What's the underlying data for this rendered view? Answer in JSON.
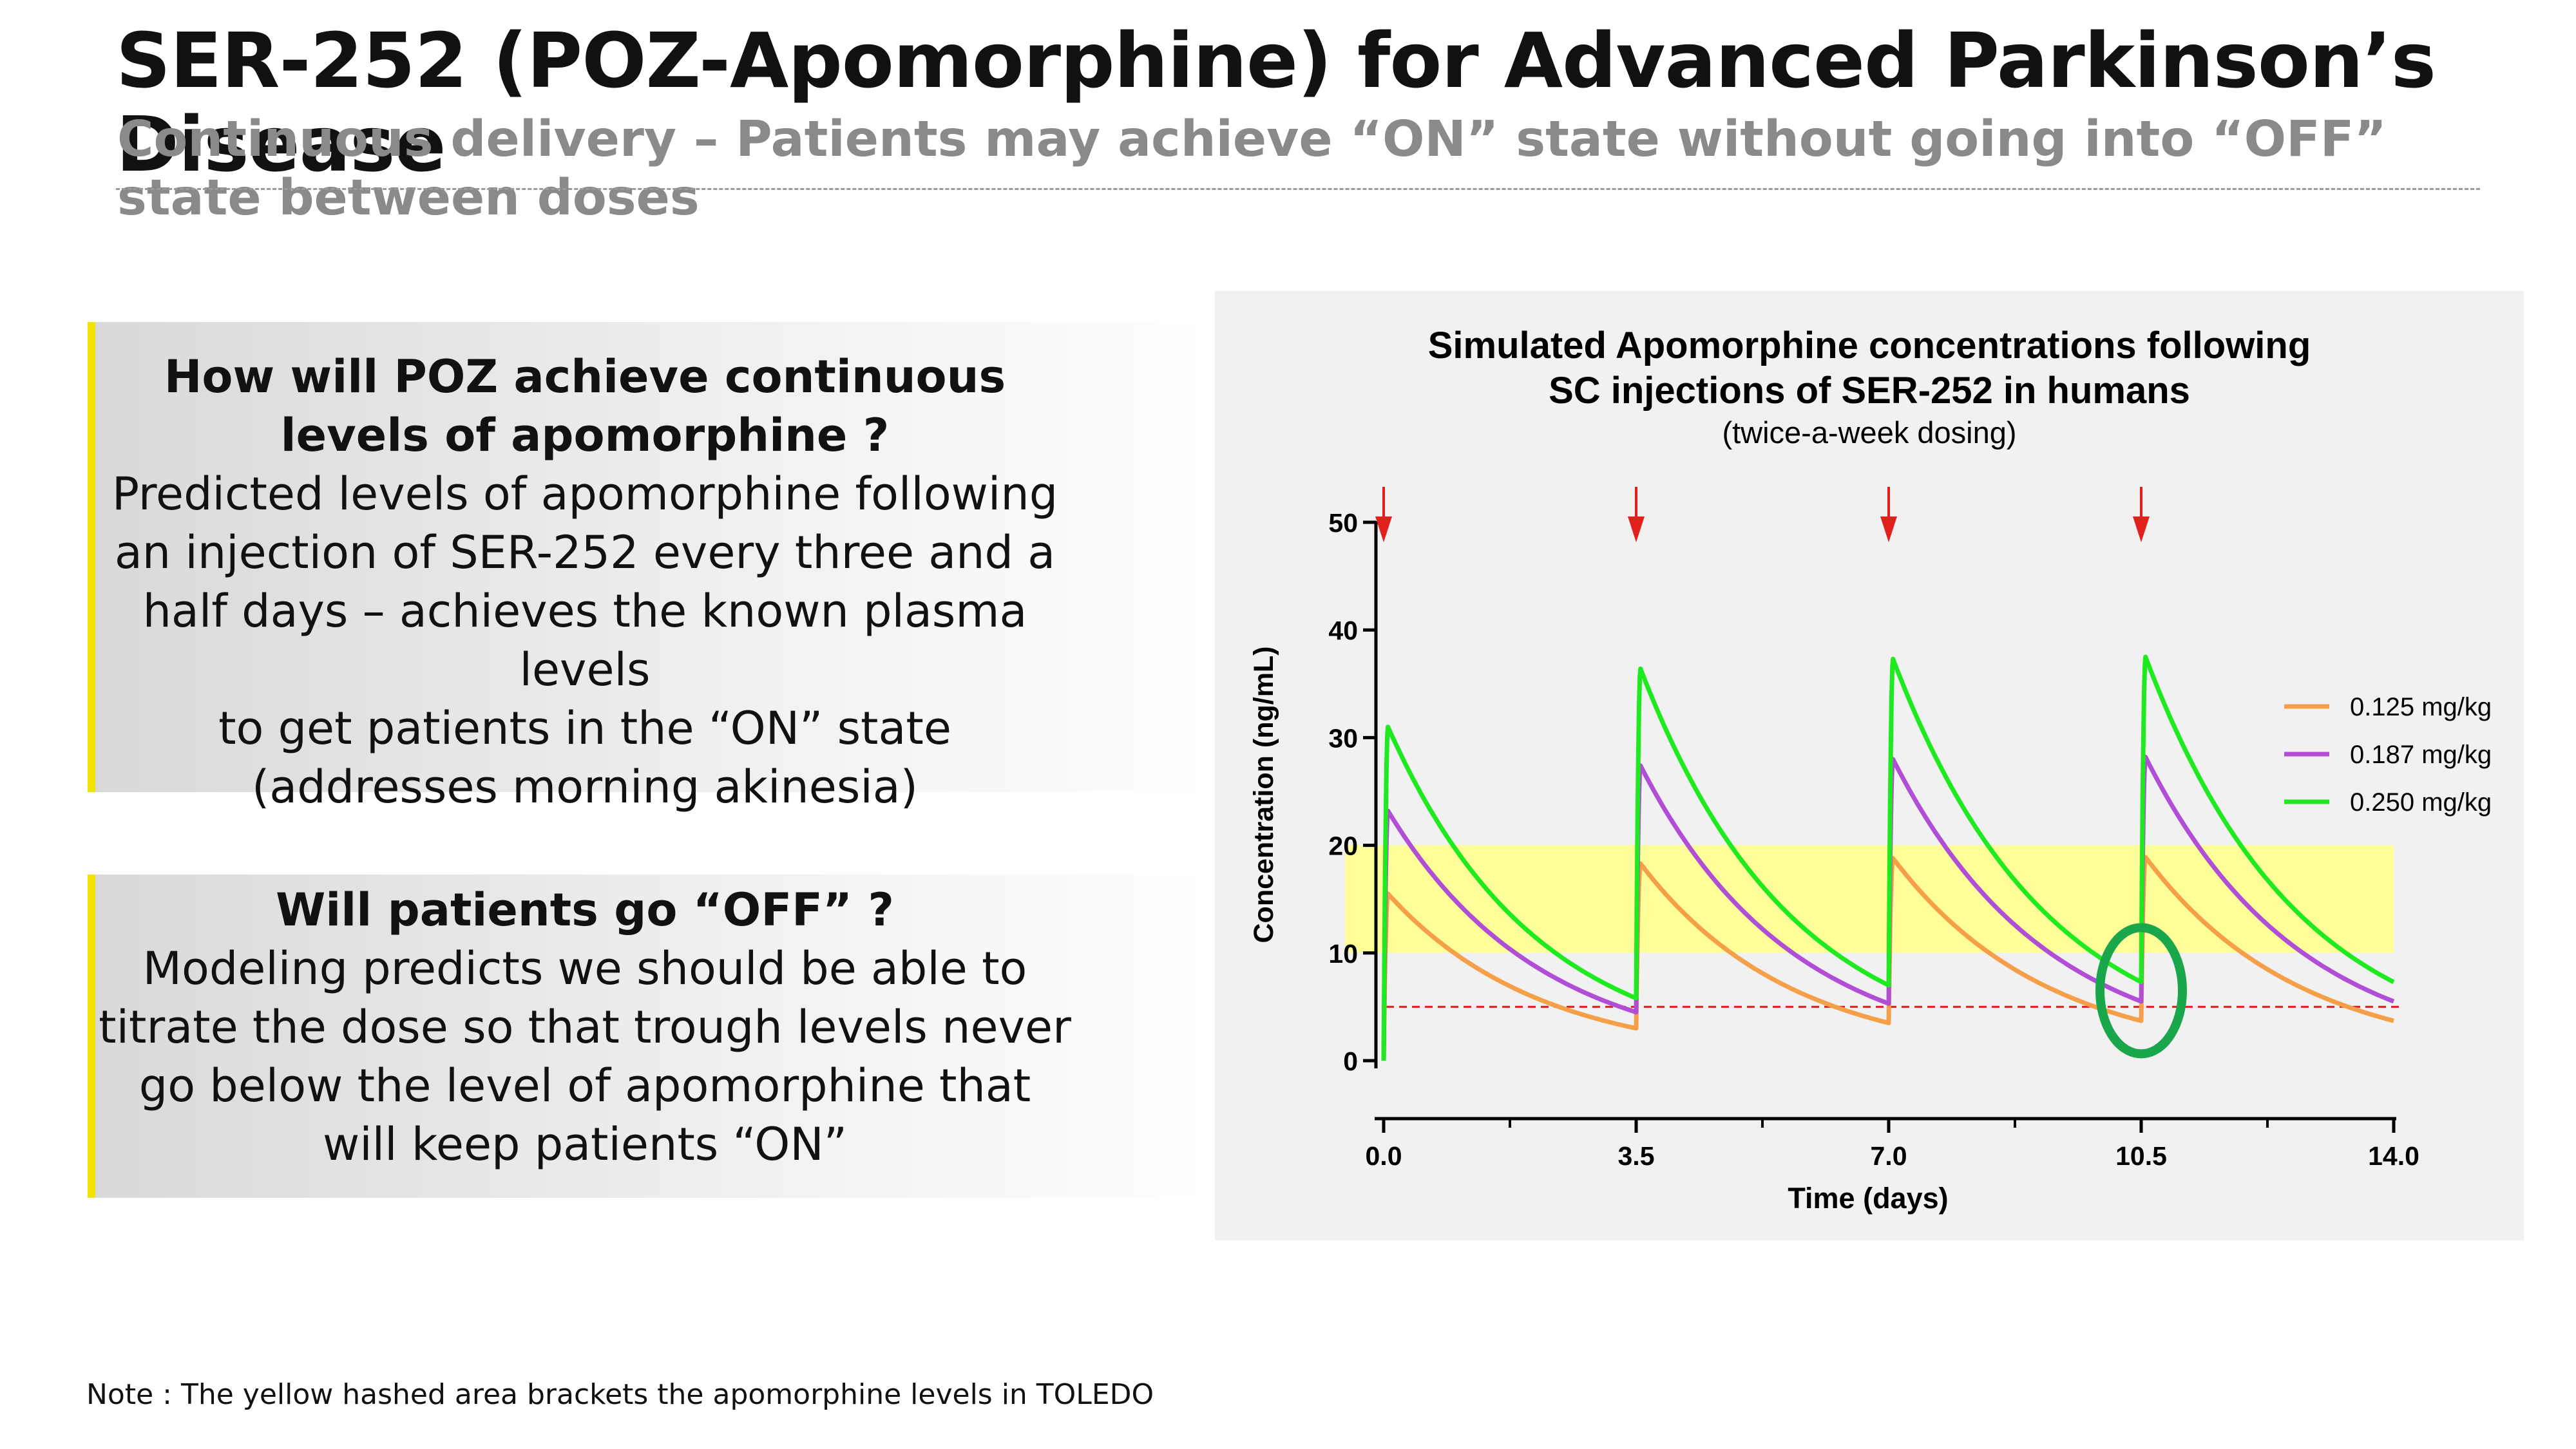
{
  "slide": {
    "title": "SER-252 (POZ-Apomorphine) for Advanced Parkinson’s Disease",
    "subtitle": "Continuous delivery – Patients may achieve “ON” state without going into “OFF” state between doses",
    "note": "Note : The yellow hashed area brackets the apomorphine levels in TOLEDO"
  },
  "box1": {
    "heading_lines": [
      "How will POZ achieve continuous",
      "levels of apomorphine ?"
    ],
    "body_lines": [
      "Predicted levels of apomorphine following",
      "an injection of SER-252 every three and a",
      "half days – achieves the known plasma",
      "levels",
      "to get patients in the “ON” state",
      "(addresses morning akinesia)"
    ]
  },
  "box2": {
    "heading_lines": [
      "Will patients go “OFF” ?"
    ],
    "body_lines": [
      "Modeling predicts we should be able to",
      "titrate the dose so that trough levels never",
      "go below the level of apomorphine that",
      "will keep patients “ON”"
    ]
  },
  "colors": {
    "accent_bar": "#f0e400",
    "band": "#ffff99",
    "threshold": "#e0201f",
    "arrow": "#e0201f",
    "circle": "#1aa64a"
  },
  "chart_data": {
    "type": "line",
    "title_lines": [
      "Simulated Apomorphine concentrations following",
      "SC injections of SER-252 in humans"
    ],
    "subtitle": "(twice-a-week dosing)",
    "xlabel": "Time (days)",
    "ylabel": "Concentration (ng/mL)",
    "xlim": [
      0,
      14
    ],
    "ylim": [
      0,
      50
    ],
    "xticks": [
      0,
      3.5,
      7,
      10.5,
      14
    ],
    "xtick_labels": [
      "0.0",
      "3.5",
      "7.0",
      "10.5",
      "14.0"
    ],
    "yticks": [
      0,
      10,
      20,
      30,
      40,
      50
    ],
    "ytick_labels": [
      "0",
      "10",
      "20",
      "30",
      "40",
      "50"
    ],
    "dose_times": [
      0,
      3.5,
      7,
      10.5
    ],
    "toledo_band": [
      10,
      20
    ],
    "on_threshold": 5,
    "highlight": {
      "x": 10.5,
      "y": 6.5
    },
    "legend_position": "right",
    "series": [
      {
        "name": "0.125 mg/kg",
        "color": "#f5a048",
        "peaks": [
          15.5,
          18.3,
          18.8,
          18.9
        ],
        "troughs": [
          3.0,
          3.5,
          3.7,
          3.7
        ]
      },
      {
        "name": "0.187 mg/kg",
        "color": "#b04ed6",
        "peaks": [
          23.2,
          27.4,
          28.0,
          28.2
        ],
        "troughs": [
          4.5,
          5.3,
          5.5,
          5.5
        ]
      },
      {
        "name": "0.250 mg/kg",
        "color": "#1fe91f",
        "peaks": [
          31.0,
          36.4,
          37.3,
          37.5
        ],
        "troughs": [
          5.8,
          7.0,
          7.3,
          7.3
        ]
      }
    ]
  }
}
